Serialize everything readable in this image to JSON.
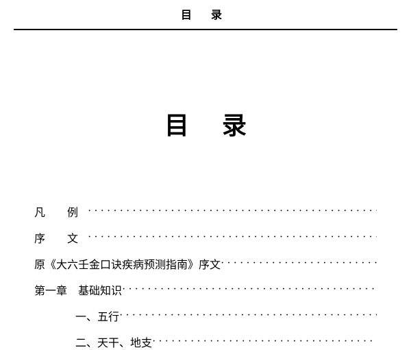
{
  "header": {
    "title": "目 录"
  },
  "main_title": "目录",
  "toc": {
    "items": [
      {
        "label": "凡 例",
        "spaced": true,
        "indent": 0
      },
      {
        "label": "序 文",
        "spaced": true,
        "indent": 0
      },
      {
        "label": "原《大六壬金口诀疾病预测指南》序文",
        "spaced": false,
        "indent": 0
      },
      {
        "label": "第一章　基础知识",
        "spaced": false,
        "indent": 0
      },
      {
        "label": "一、五行",
        "spaced": false,
        "indent": 1
      },
      {
        "label": "二、天干、地支",
        "spaced": false,
        "indent": 1
      }
    ]
  },
  "colors": {
    "text": "#000000",
    "background": "#ffffff",
    "rule": "#000000"
  },
  "typography": {
    "header_fontsize": 16,
    "main_title_fontsize": 36,
    "toc_fontsize": 16,
    "font_family": "SimSun"
  }
}
